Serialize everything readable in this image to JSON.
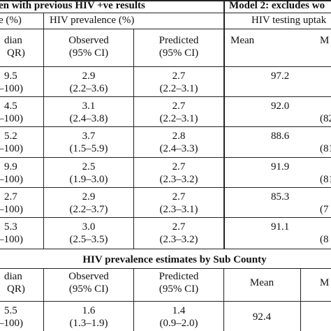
{
  "section1": {
    "title_left": "en with previous HIV +ve results",
    "title_right": "Model 2: excludes wo",
    "col_left_fragment": "e (%)",
    "prevalence_header": "HIV prevalence (%)",
    "uptake_header": "HIV testing uptak",
    "median_label": "dian",
    "iqr_label": "QR)",
    "observed_label": "Observed",
    "predicted_label": "Predicted",
    "ci_label": "(95% CI)",
    "mean_label": "Mean",
    "right_cut_label": "M",
    "rows": [
      {
        "median": "9.5",
        "iqr": "–100)",
        "obs": "2.9",
        "obs_ci": "(2.2–3.6)",
        "pred": "2.7",
        "pred_ci": "(2.2–3.1)",
        "mean": "97.2",
        "right_cut": ""
      },
      {
        "median": "4.5",
        "iqr": "–100)",
        "obs": "3.1",
        "obs_ci": "(2.4–3.8)",
        "pred": "2.7",
        "pred_ci": "(2.2–3.1)",
        "mean": "92.0",
        "right_cut": "(82"
      },
      {
        "median": "5.2",
        "iqr": "–100)",
        "obs": "3.7",
        "obs_ci": "(1.5–5.9)",
        "pred": "2.8",
        "pred_ci": "(2.4–3.3)",
        "mean": "88.6",
        "right_cut": "(81"
      },
      {
        "median": "9.9",
        "iqr": "–100)",
        "obs": "2.5",
        "obs_ci": "(1.9–3.0)",
        "pred": "2.7",
        "pred_ci": "(2.3–3.2)",
        "mean": "91.9",
        "right_cut": "(81"
      },
      {
        "median": "2.7",
        "iqr": "–100)",
        "obs": "2.9",
        "obs_ci": "(2.2–3.7)",
        "pred": "2.7",
        "pred_ci": "(2.3–3.1)",
        "mean": "85.3",
        "right_cut": "(7"
      },
      {
        "median": "5.3",
        "iqr": "–100)",
        "obs": "3.0",
        "obs_ci": "(2.5–3.5)",
        "pred": "2.7",
        "pred_ci": "(2.3–3.2)",
        "mean": "91.1",
        "right_cut": "(8"
      }
    ]
  },
  "section2": {
    "title": "HIV prevalence estimates by Sub County",
    "median_label": "dian",
    "iqr_label": "QR)",
    "observed_label": "Observed",
    "predicted_label": "Predicted",
    "ci_label": "(95% CI)",
    "mean_label": "Mean",
    "right_cut_label": "M",
    "rows": [
      {
        "median": "5.5",
        "iqr": "–100)",
        "obs": "1.6",
        "obs_ci": "(1.3–1.9)",
        "pred": "1.4",
        "pred_ci": "(0.9–2.0)",
        "mean": "92.4",
        "right_cut": ""
      }
    ]
  }
}
